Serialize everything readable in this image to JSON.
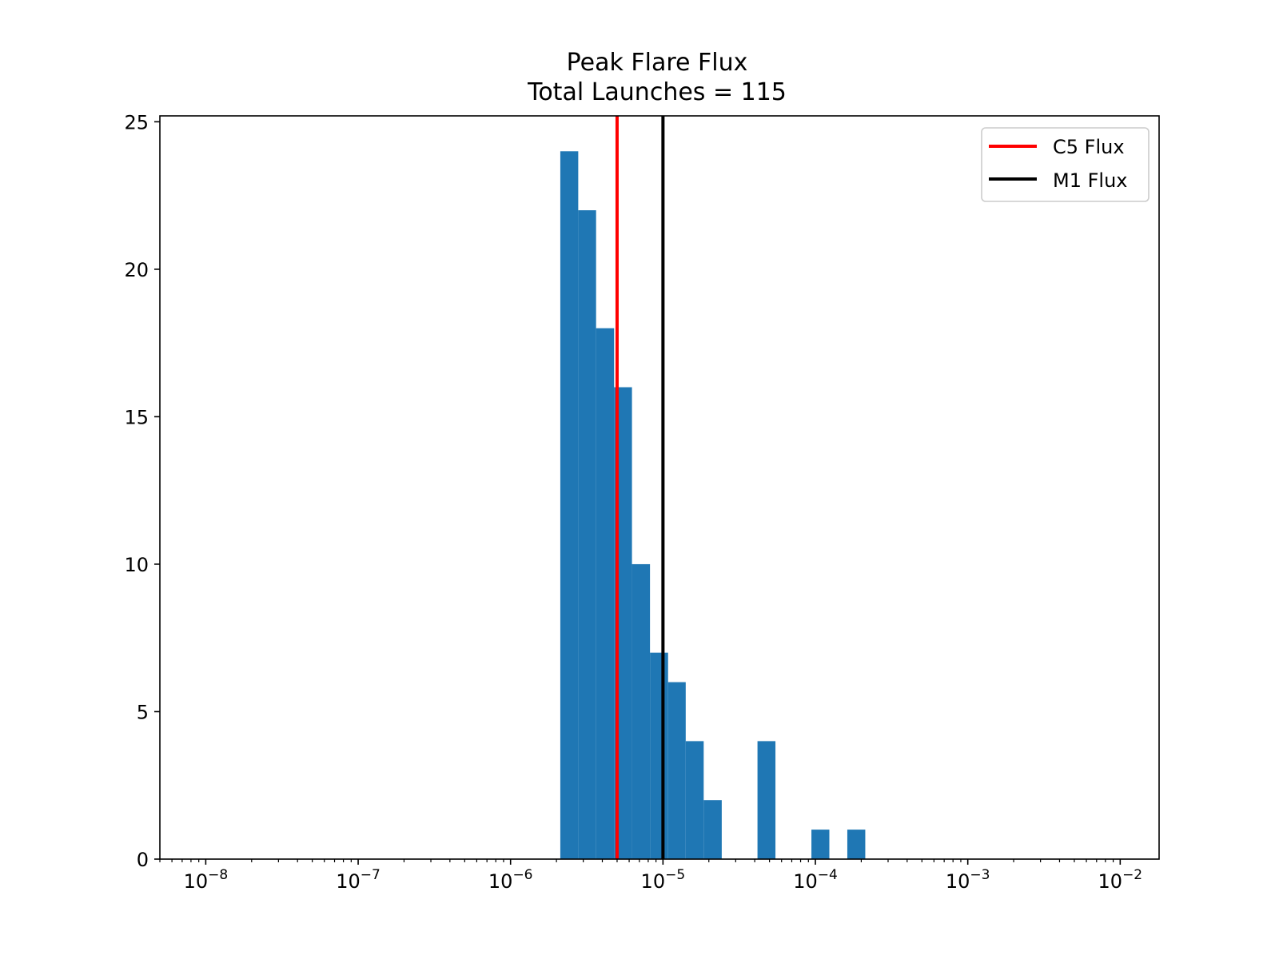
{
  "chart_data": {
    "type": "bar",
    "title": "Peak Flare Flux",
    "subtitle": "Total Launches = 115",
    "xlabel": "",
    "ylabel": "",
    "x_scale": "log",
    "xlim": [
      5e-09,
      0.018
    ],
    "ylim": [
      0,
      25.2
    ],
    "x_ticks": [
      1e-08,
      1e-07,
      1e-06,
      1e-05,
      0.0001,
      0.001,
      0.01
    ],
    "x_tick_labels": [
      {
        "base": "10",
        "exp": "−8"
      },
      {
        "base": "10",
        "exp": "−7"
      },
      {
        "base": "10",
        "exp": "−6"
      },
      {
        "base": "10",
        "exp": "−5"
      },
      {
        "base": "10",
        "exp": "−4"
      },
      {
        "base": "10",
        "exp": "−3"
      },
      {
        "base": "10",
        "exp": "−2"
      }
    ],
    "y_ticks": [
      0,
      5,
      10,
      15,
      20,
      25
    ],
    "y_tick_labels": [
      "0",
      "5",
      "10",
      "15",
      "20",
      "25"
    ],
    "bar_color": "#1f77b4",
    "bins": [
      {
        "x0": 2.12e-06,
        "x1": 2.78e-06,
        "count": 24
      },
      {
        "x0": 2.78e-06,
        "x1": 3.64e-06,
        "count": 22
      },
      {
        "x0": 3.64e-06,
        "x1": 4.78e-06,
        "count": 18
      },
      {
        "x0": 4.78e-06,
        "x1": 6.26e-06,
        "count": 16
      },
      {
        "x0": 6.26e-06,
        "x1": 8.22e-06,
        "count": 10
      },
      {
        "x0": 8.22e-06,
        "x1": 1.08e-05,
        "count": 7
      },
      {
        "x0": 1.08e-05,
        "x1": 1.41e-05,
        "count": 6
      },
      {
        "x0": 1.41e-05,
        "x1": 1.85e-05,
        "count": 4
      },
      {
        "x0": 1.85e-05,
        "x1": 2.43e-05,
        "count": 2
      },
      {
        "x0": 2.43e-05,
        "x1": 3.18e-05,
        "count": 0
      },
      {
        "x0": 3.18e-05,
        "x1": 4.17e-05,
        "count": 0
      },
      {
        "x0": 4.17e-05,
        "x1": 5.47e-05,
        "count": 4
      },
      {
        "x0": 5.47e-05,
        "x1": 7.18e-05,
        "count": 0
      },
      {
        "x0": 7.18e-05,
        "x1": 9.42e-05,
        "count": 0
      },
      {
        "x0": 9.42e-05,
        "x1": 0.0001235,
        "count": 1
      },
      {
        "x0": 0.0001235,
        "x1": 0.000162,
        "count": 0
      },
      {
        "x0": 0.000162,
        "x1": 0.0002125,
        "count": 1
      }
    ],
    "vlines": [
      {
        "name": "C5 Flux",
        "x": 5e-06,
        "color": "#ff0000"
      },
      {
        "name": "M1 Flux",
        "x": 1e-05,
        "color": "#000000"
      }
    ],
    "legend": {
      "position": "upper right",
      "entries": [
        "C5 Flux",
        "M1 Flux"
      ]
    }
  }
}
